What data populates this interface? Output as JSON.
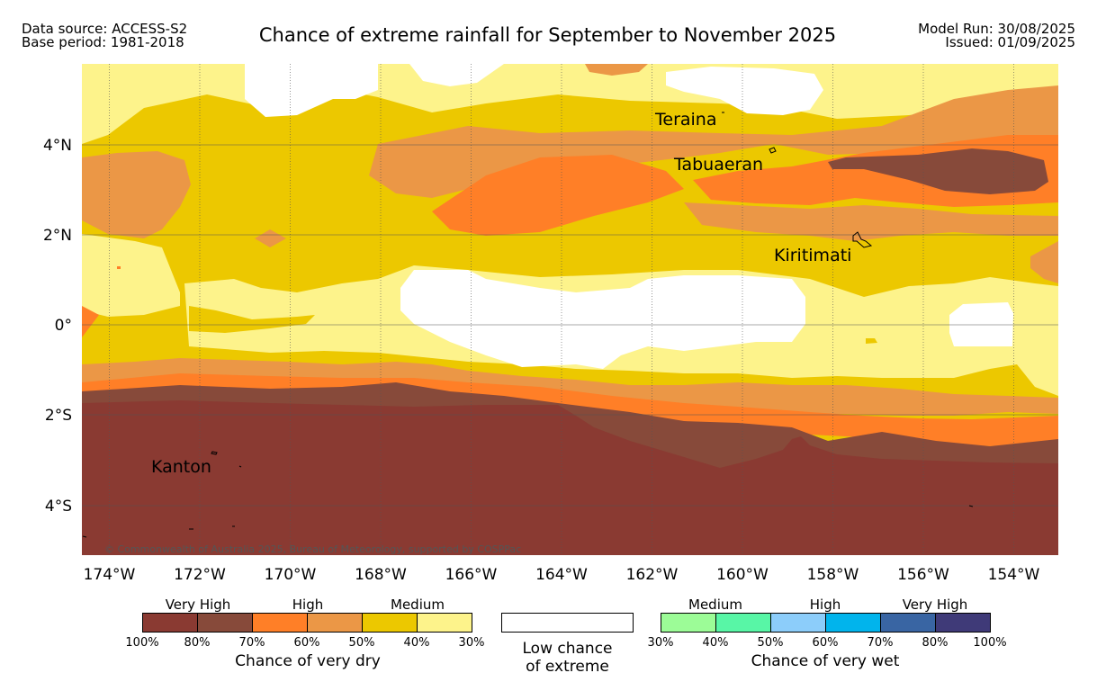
{
  "header": {
    "data_source": "Data source: ACCESS-S2",
    "base_period": "Base period: 1981-2018",
    "title": "Chance of extreme rainfall for September to November 2025",
    "model_run": "Model Run: 30/08/2025",
    "issued": "Issued: 01/09/2025"
  },
  "map": {
    "x_ticks": [
      "174°W",
      "172°W",
      "170°W",
      "168°W",
      "166°W",
      "164°W",
      "162°W",
      "160°W",
      "158°W",
      "156°W",
      "154°W"
    ],
    "y_ticks": [
      "4°N",
      "2°N",
      "0°",
      "2°S",
      "4°S"
    ],
    "places": {
      "teraina": "Teraina",
      "tabuaeran": "Tabuaeran",
      "kiritimati": "Kiritimati",
      "kanton": "Kanton"
    },
    "copyright": "© Commonwealth of Australia 2025, Bureau of Meteorology, supported by COSPPac",
    "colors": {
      "very_dry_high": "#8a3a32",
      "very_dry_70_80": "#874a3a",
      "dry_60_70": "#ff7f27",
      "dry_50_60": "#eb9746",
      "dry_40_50": "#ecc800",
      "dry_30_40": "#fdf38b",
      "low": "#ffffff"
    }
  },
  "legend": {
    "dry": {
      "groups": [
        "Very High",
        "High",
        "Medium"
      ],
      "ticks": [
        "100%",
        "80%",
        "70%",
        "60%",
        "50%",
        "40%",
        "30%"
      ],
      "colors": [
        "#8a3a32",
        "#874a3a",
        "#ff7f27",
        "#eb9746",
        "#ecc800",
        "#fdf38b"
      ],
      "caption": "Chance of very dry"
    },
    "low": {
      "caption_line1": "Low chance",
      "caption_line2": "of extreme",
      "color": "#ffffff"
    },
    "wet": {
      "groups": [
        "Medium",
        "High",
        "Very High"
      ],
      "ticks": [
        "30%",
        "40%",
        "50%",
        "60%",
        "70%",
        "80%",
        "100%"
      ],
      "colors": [
        "#9cfc97",
        "#58f6a6",
        "#8ccdfa",
        "#01b4ec",
        "#3965a3",
        "#3f3a78"
      ],
      "caption": "Chance of very wet"
    }
  }
}
